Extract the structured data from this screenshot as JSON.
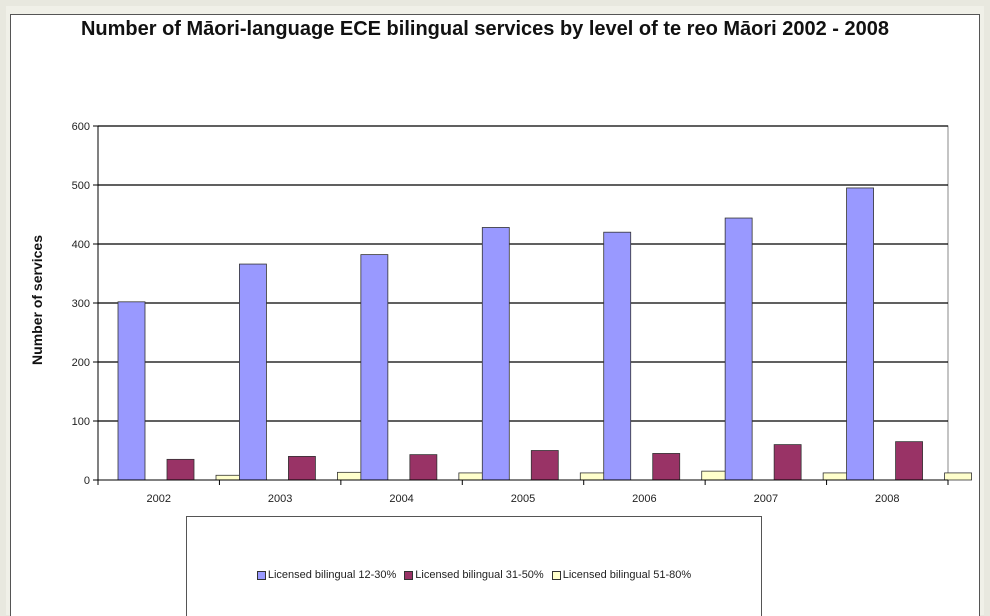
{
  "chart_data": {
    "type": "bar",
    "title": "Number of Māori-language ECE bilingual services by level of te reo Māori 2002 - 2008",
    "ylabel": "Number of services",
    "xlabel": "",
    "ylim": [
      0,
      600
    ],
    "yticks": [
      "0",
      "100",
      "200",
      "300",
      "400",
      "500",
      "600"
    ],
    "categories": [
      "2002",
      "2003",
      "2004",
      "2005",
      "2006",
      "2007",
      "2008"
    ],
    "series": [
      {
        "name": "Licensed bilingual 12-30%",
        "color": "#9999ff",
        "values": [
          302,
          366,
          382,
          428,
          420,
          444,
          495
        ]
      },
      {
        "name": "Licensed bilingual 31-50%",
        "color": "#993366",
        "values": [
          35,
          40,
          43,
          50,
          45,
          60,
          65
        ]
      },
      {
        "name": "Licensed bilingual 51-80%",
        "color": "#ffffcc",
        "values": [
          8,
          13,
          12,
          12,
          15,
          12,
          12
        ]
      }
    ],
    "grid": true,
    "legend_position": "bottom"
  }
}
